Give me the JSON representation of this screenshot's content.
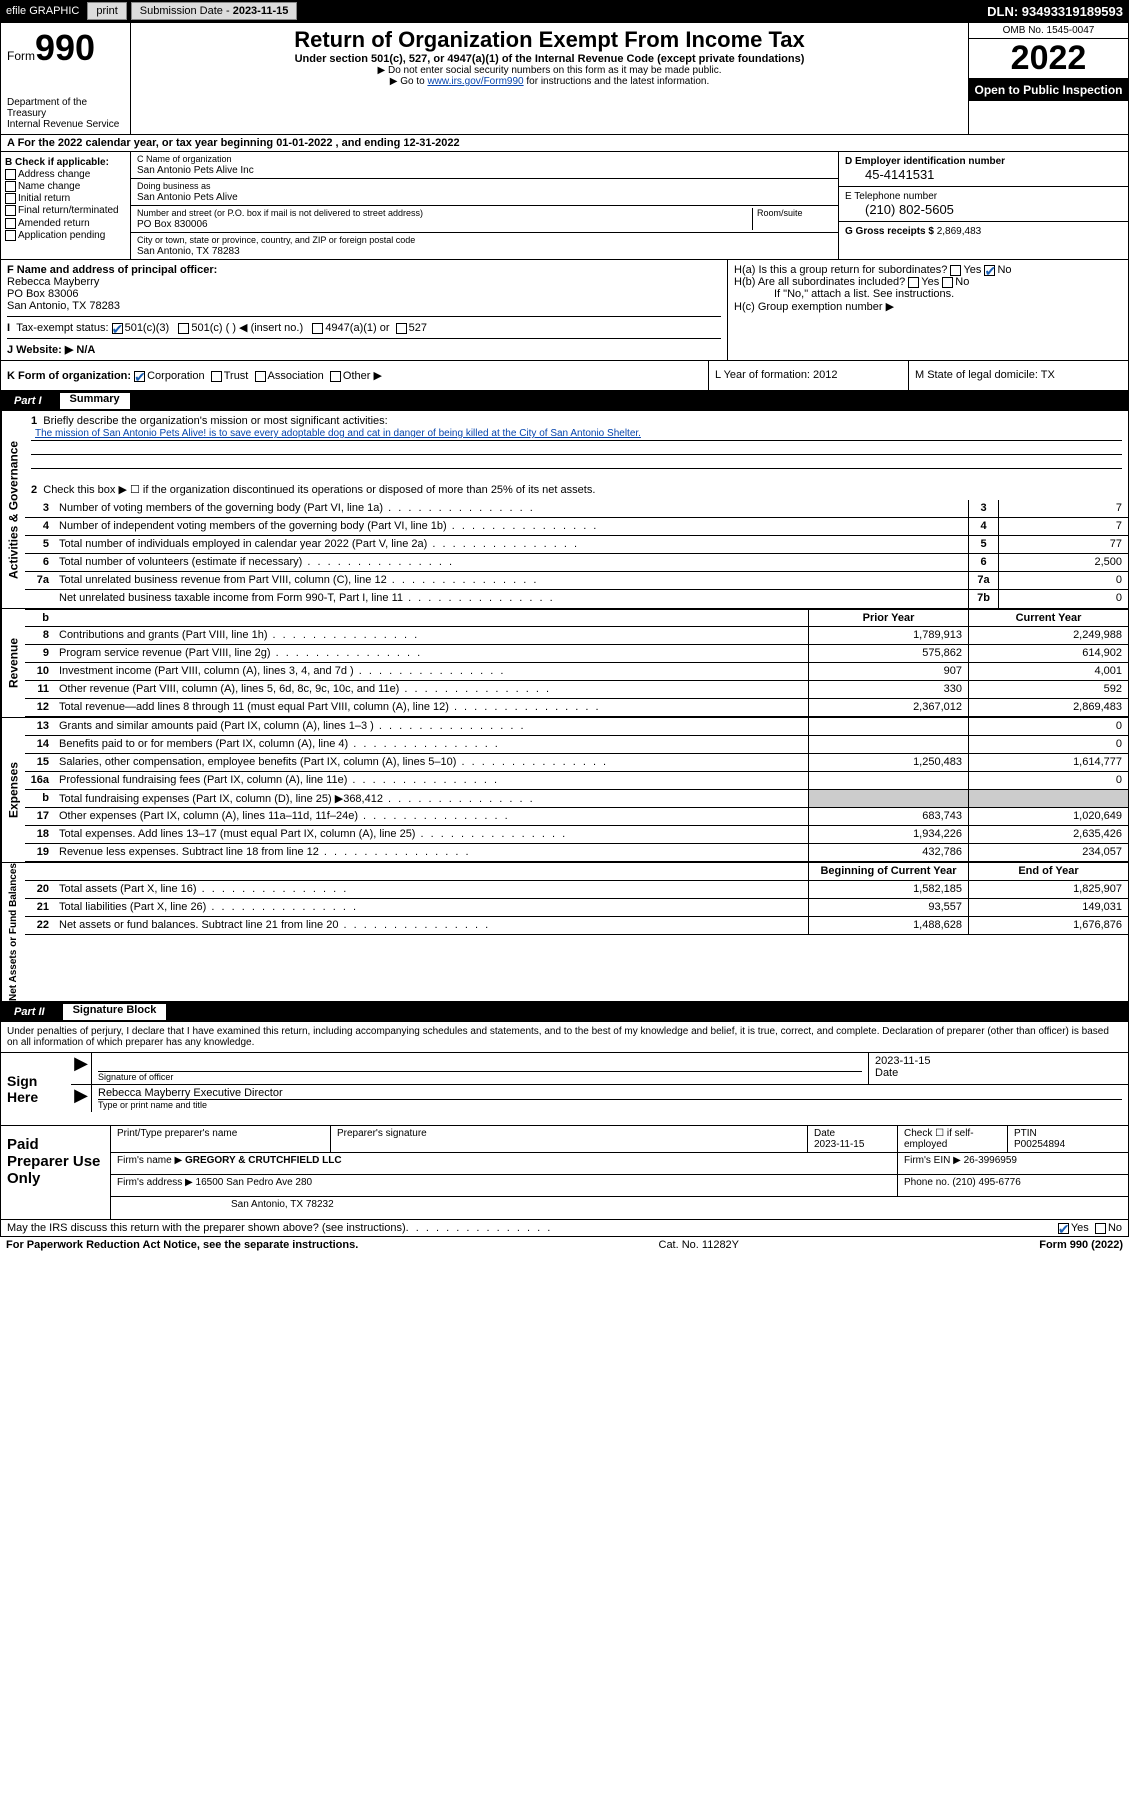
{
  "topbar": {
    "efile": "efile GRAPHIC",
    "print": "print",
    "subdate_lbl": "Submission Date - ",
    "subdate": "2023-11-15",
    "dln": "DLN: 93493319189593"
  },
  "header": {
    "form_prefix": "Form",
    "form_num": "990",
    "dept": "Department of the Treasury\nInternal Revenue Service",
    "title": "Return of Organization Exempt From Income Tax",
    "sub": "Under section 501(c), 527, or 4947(a)(1) of the Internal Revenue Code (except private foundations)",
    "instr1": "▶ Do not enter social security numbers on this form as it may be made public.",
    "instr2_pre": "▶ Go to ",
    "instr2_link": "www.irs.gov/Form990",
    "instr2_post": " for instructions and the latest information.",
    "omb": "OMB No. 1545-0047",
    "year": "2022",
    "open": "Open to Public Inspection"
  },
  "rowA": "A For the 2022 calendar year, or tax year beginning 01-01-2022   , and ending 12-31-2022",
  "colB": {
    "hdr": "B Check if applicable:",
    "items": [
      "Address change",
      "Name change",
      "Initial return",
      "Final return/terminated",
      "Amended return",
      "Application pending"
    ]
  },
  "colC": {
    "name_lbl": "C Name of organization",
    "name": "San Antonio Pets Alive Inc",
    "dba_lbl": "Doing business as",
    "dba": "San Antonio Pets Alive",
    "addr_lbl": "Number and street (or P.O. box if mail is not delivered to street address)",
    "room_lbl": "Room/suite",
    "addr": "PO Box 830006",
    "city_lbl": "City or town, state or province, country, and ZIP or foreign postal code",
    "city": "San Antonio, TX  78283"
  },
  "colDE": {
    "d_lbl": "D Employer identification number",
    "d_val": "45-4141531",
    "e_lbl": "E Telephone number",
    "e_val": "(210) 802-5605",
    "g_lbl": "G Gross receipts $ ",
    "g_val": "2,869,483"
  },
  "rowF": {
    "lbl": "F Name and address of principal officer:",
    "name": "Rebecca Mayberry",
    "addr1": "PO Box 83006",
    "addr2": "San Antonio, TX  78283"
  },
  "rowH": {
    "ha": "H(a)  Is this a group return for subordinates?",
    "hb": "H(b)  Are all subordinates included?",
    "hb2": "If \"No,\" attach a list. See instructions.",
    "hc": "H(c)  Group exemption number ▶"
  },
  "rowI": {
    "lbl": "Tax-exempt status:",
    "o1": "501(c)(3)",
    "o2": "501(c) (   ) ◀ (insert no.)",
    "o3": "4947(a)(1) or",
    "o4": "527"
  },
  "rowJ": "J  Website: ▶  N/A",
  "rowK": {
    "lbl": "K Form of organization:",
    "o1": "Corporation",
    "o2": "Trust",
    "o3": "Association",
    "o4": "Other ▶"
  },
  "rowL": "L Year of formation: 2012",
  "rowM": "M State of legal domicile: TX",
  "part1": {
    "num": "Part I",
    "title": "Summary"
  },
  "ag": {
    "tab": "Activities & Governance",
    "l1": "Briefly describe the organization's mission or most significant activities:",
    "mission": "The mission of San Antonio Pets Alive! is to save every adoptable dog and cat in danger of being killed at the City of San Antonio Shelter.",
    "l2": "Check this box ▶ ☐  if the organization discontinued its operations or disposed of more than 25% of its net assets.",
    "rows": [
      {
        "n": "3",
        "d": "Number of voting members of the governing body (Part VI, line 1a)",
        "box": "3",
        "v": "7"
      },
      {
        "n": "4",
        "d": "Number of independent voting members of the governing body (Part VI, line 1b)",
        "box": "4",
        "v": "7"
      },
      {
        "n": "5",
        "d": "Total number of individuals employed in calendar year 2022 (Part V, line 2a)",
        "box": "5",
        "v": "77"
      },
      {
        "n": "6",
        "d": "Total number of volunteers (estimate if necessary)",
        "box": "6",
        "v": "2,500"
      },
      {
        "n": "7a",
        "d": "Total unrelated business revenue from Part VIII, column (C), line 12",
        "box": "7a",
        "v": "0"
      },
      {
        "n": "",
        "d": "Net unrelated business taxable income from Form 990-T, Part I, line 11",
        "box": "7b",
        "v": "0"
      }
    ]
  },
  "hdr2": {
    "c1": "Prior Year",
    "c2": "Current Year"
  },
  "rev": {
    "tab": "Revenue",
    "rows": [
      {
        "n": "8",
        "d": "Contributions and grants (Part VIII, line 1h)",
        "v1": "1,789,913",
        "v2": "2,249,988"
      },
      {
        "n": "9",
        "d": "Program service revenue (Part VIII, line 2g)",
        "v1": "575,862",
        "v2": "614,902"
      },
      {
        "n": "10",
        "d": "Investment income (Part VIII, column (A), lines 3, 4, and 7d )",
        "v1": "907",
        "v2": "4,001"
      },
      {
        "n": "11",
        "d": "Other revenue (Part VIII, column (A), lines 5, 6d, 8c, 9c, 10c, and 11e)",
        "v1": "330",
        "v2": "592"
      },
      {
        "n": "12",
        "d": "Total revenue—add lines 8 through 11 (must equal Part VIII, column (A), line 12)",
        "v1": "2,367,012",
        "v2": "2,869,483"
      }
    ]
  },
  "exp": {
    "tab": "Expenses",
    "rows": [
      {
        "n": "13",
        "d": "Grants and similar amounts paid (Part IX, column (A), lines 1–3 )",
        "v1": "",
        "v2": "0"
      },
      {
        "n": "14",
        "d": "Benefits paid to or for members (Part IX, column (A), line 4)",
        "v1": "",
        "v2": "0"
      },
      {
        "n": "15",
        "d": "Salaries, other compensation, employee benefits (Part IX, column (A), lines 5–10)",
        "v1": "1,250,483",
        "v2": "1,614,777"
      },
      {
        "n": "16a",
        "d": "Professional fundraising fees (Part IX, column (A), line 11e)",
        "v1": "",
        "v2": "0"
      },
      {
        "n": "b",
        "d": "Total fundraising expenses (Part IX, column (D), line 25) ▶368,412",
        "v1": "shade",
        "v2": "shade"
      },
      {
        "n": "17",
        "d": "Other expenses (Part IX, column (A), lines 11a–11d, 11f–24e)",
        "v1": "683,743",
        "v2": "1,020,649"
      },
      {
        "n": "18",
        "d": "Total expenses. Add lines 13–17 (must equal Part IX, column (A), line 25)",
        "v1": "1,934,226",
        "v2": "2,635,426"
      },
      {
        "n": "19",
        "d": "Revenue less expenses. Subtract line 18 from line 12",
        "v1": "432,786",
        "v2": "234,057"
      }
    ]
  },
  "hdr3": {
    "c1": "Beginning of Current Year",
    "c2": "End of Year"
  },
  "na": {
    "tab": "Net Assets or Fund Balances",
    "rows": [
      {
        "n": "20",
        "d": "Total assets (Part X, line 16)",
        "v1": "1,582,185",
        "v2": "1,825,907"
      },
      {
        "n": "21",
        "d": "Total liabilities (Part X, line 26)",
        "v1": "93,557",
        "v2": "149,031"
      },
      {
        "n": "22",
        "d": "Net assets or fund balances. Subtract line 21 from line 20",
        "v1": "1,488,628",
        "v2": "1,676,876"
      }
    ]
  },
  "part2": {
    "num": "Part II",
    "title": "Signature Block"
  },
  "penalties": "Under penalties of perjury, I declare that I have examined this return, including accompanying schedules and statements, and to the best of my knowledge and belief, it is true, correct, and complete. Declaration of preparer (other than officer) is based on all information of which preparer has any knowledge.",
  "sign": {
    "lbl": "Sign Here",
    "sig_lbl": "Signature of officer",
    "date": "2023-11-15",
    "date_lbl": "Date",
    "name": "Rebecca Mayberry  Executive Director",
    "name_lbl": "Type or print name and title"
  },
  "prep": {
    "lbl": "Paid Preparer Use Only",
    "r1": {
      "c1": "Print/Type preparer's name",
      "c2": "Preparer's signature",
      "c3_lbl": "Date",
      "c3": "2023-11-15",
      "c4": "Check ☐ if self-employed",
      "c5_lbl": "PTIN",
      "c5": "P00254894"
    },
    "r2": {
      "c1": "Firm's name    ▶",
      "c1v": "GREGORY & CRUTCHFIELD LLC",
      "c2": "Firm's EIN ▶",
      "c2v": "26-3996959"
    },
    "r3": {
      "c1": "Firm's address ▶",
      "c1v": "16500 San Pedro Ave 280",
      "c2": "Phone no.",
      "c2v": "(210) 495-6776"
    },
    "r4": "San Antonio, TX  78232"
  },
  "foot": {
    "q": "May the IRS discuss this return with the preparer shown above? (see instructions)",
    "yes": "Yes",
    "no": "No"
  },
  "foot2": {
    "l": "For Paperwork Reduction Act Notice, see the separate instructions.",
    "m": "Cat. No. 11282Y",
    "r": "Form 990 (2022)"
  }
}
